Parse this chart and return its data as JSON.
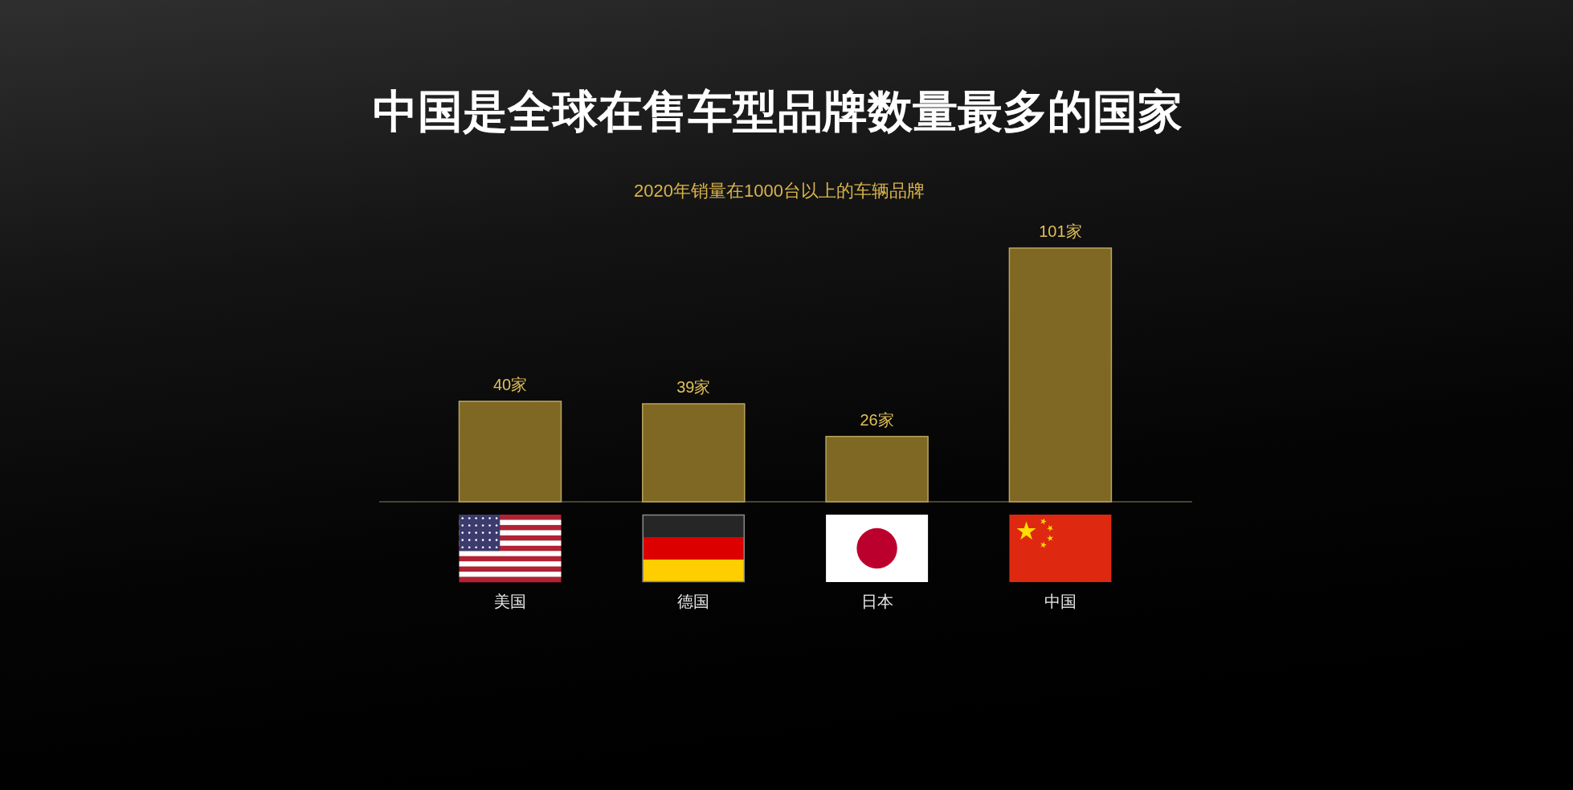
{
  "chart_data": {
    "type": "bar",
    "title": "中国是全球在售车型品牌数量最多的国家",
    "subtitle": "2020年销量在1000台以上的车辆品牌",
    "categories": [
      "美国",
      "德国",
      "日本",
      "中国"
    ],
    "values": [
      40,
      39,
      26,
      101
    ],
    "value_labels": [
      "40家",
      "39家",
      "26家",
      "101家"
    ],
    "color": "#7f6724",
    "tick_labels": "x"
  }
}
